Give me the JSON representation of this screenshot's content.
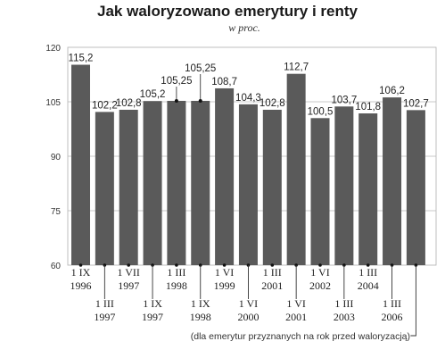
{
  "chart_data": {
    "type": "bar",
    "title": "Jak waloryzowano emerytury i renty",
    "subtitle": "w proc.",
    "ylim": [
      60,
      120
    ],
    "yticks": [
      60,
      75,
      90,
      105,
      120
    ],
    "grid": true,
    "categories": [
      [
        "1 IX",
        "1996"
      ],
      [
        "1 III",
        "1997"
      ],
      [
        "1 VII",
        "1997"
      ],
      [
        "1 IX",
        "1997"
      ],
      [
        "1 III",
        "1998"
      ],
      [
        "1 IX",
        "1998"
      ],
      [
        "1 VI",
        "1999"
      ],
      [
        "1 VI",
        "2000"
      ],
      [
        "1 III",
        "2001"
      ],
      [
        "1 VI",
        "2001"
      ],
      [
        "1 VI",
        "2002"
      ],
      [
        "1 III",
        "2003"
      ],
      [
        "1 III",
        "2004"
      ],
      [
        "1 III",
        "2006"
      ],
      [
        "",
        ""
      ]
    ],
    "values": [
      115.2,
      102.2,
      102.8,
      105.2,
      105.25,
      105.25,
      108.7,
      104.3,
      102.8,
      112.7,
      100.5,
      103.7,
      101.8,
      106.2,
      102.7
    ],
    "value_labels": [
      "115,2",
      "102,2",
      "102,8",
      "105,2",
      "105,25",
      "105,25",
      "108,7",
      "104,3",
      "102,8",
      "112,7",
      "100,5",
      "103,7",
      "101,8",
      "106,2",
      "102,7"
    ],
    "note": "(dla emerytur przyznanych na rok przed waloryzacją)",
    "bar_color": "#5a5a5a"
  }
}
